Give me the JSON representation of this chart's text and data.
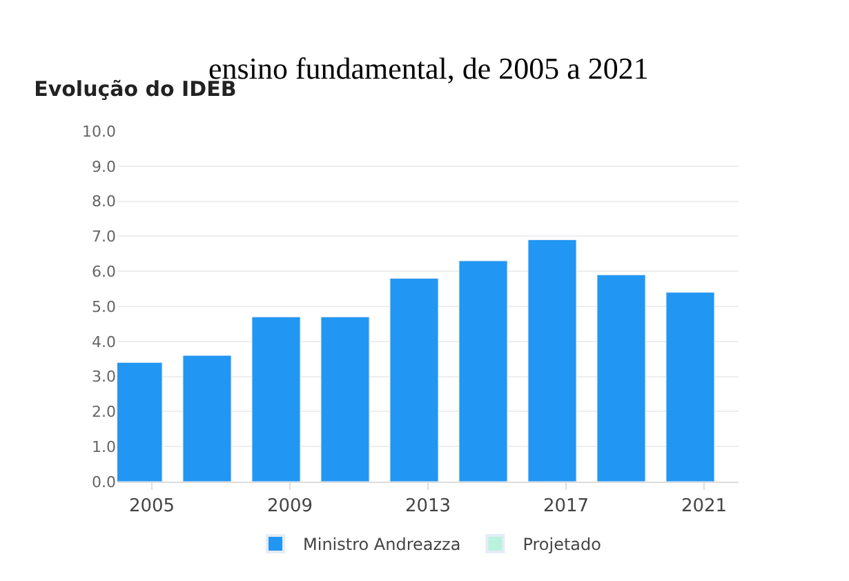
{
  "chart_data": {
    "type": "bar",
    "title": "Evolução do IDEB",
    "annotations": [
      "ensino fundamental, de 2005 a 2021"
    ],
    "x": [
      2005,
      2007,
      2009,
      2011,
      2013,
      2015,
      2017,
      2019,
      2021
    ],
    "series": [
      {
        "name": "Ministro Andreazza",
        "color": "#2196f3",
        "values": [
          3.4,
          3.6,
          4.7,
          4.7,
          5.8,
          6.3,
          6.9,
          5.9,
          5.4
        ]
      },
      {
        "name": "Projetado",
        "color": "#b9f2dd",
        "values": [
          null,
          null,
          null,
          null,
          null,
          null,
          null,
          null,
          null
        ]
      }
    ],
    "xlim": [
      2004,
      2022
    ],
    "xticks": [
      2005,
      2009,
      2013,
      2017,
      2021
    ],
    "ylim": [
      0,
      10
    ],
    "yticks": [
      {
        "value": 0,
        "label": "0.0"
      },
      {
        "value": 1,
        "label": "1.0"
      },
      {
        "value": 2,
        "label": "2.0"
      },
      {
        "value": 3,
        "label": "3.0"
      },
      {
        "value": 4,
        "label": "4.0"
      },
      {
        "value": 5,
        "label": "5.0"
      },
      {
        "value": 6,
        "label": "6.0"
      },
      {
        "value": 7,
        "label": "7.0"
      },
      {
        "value": 8,
        "label": "8.0"
      },
      {
        "value": 9,
        "label": "9.0"
      },
      {
        "value": 10,
        "label": "10.0"
      }
    ],
    "grid": "y",
    "legend": "bottom"
  }
}
